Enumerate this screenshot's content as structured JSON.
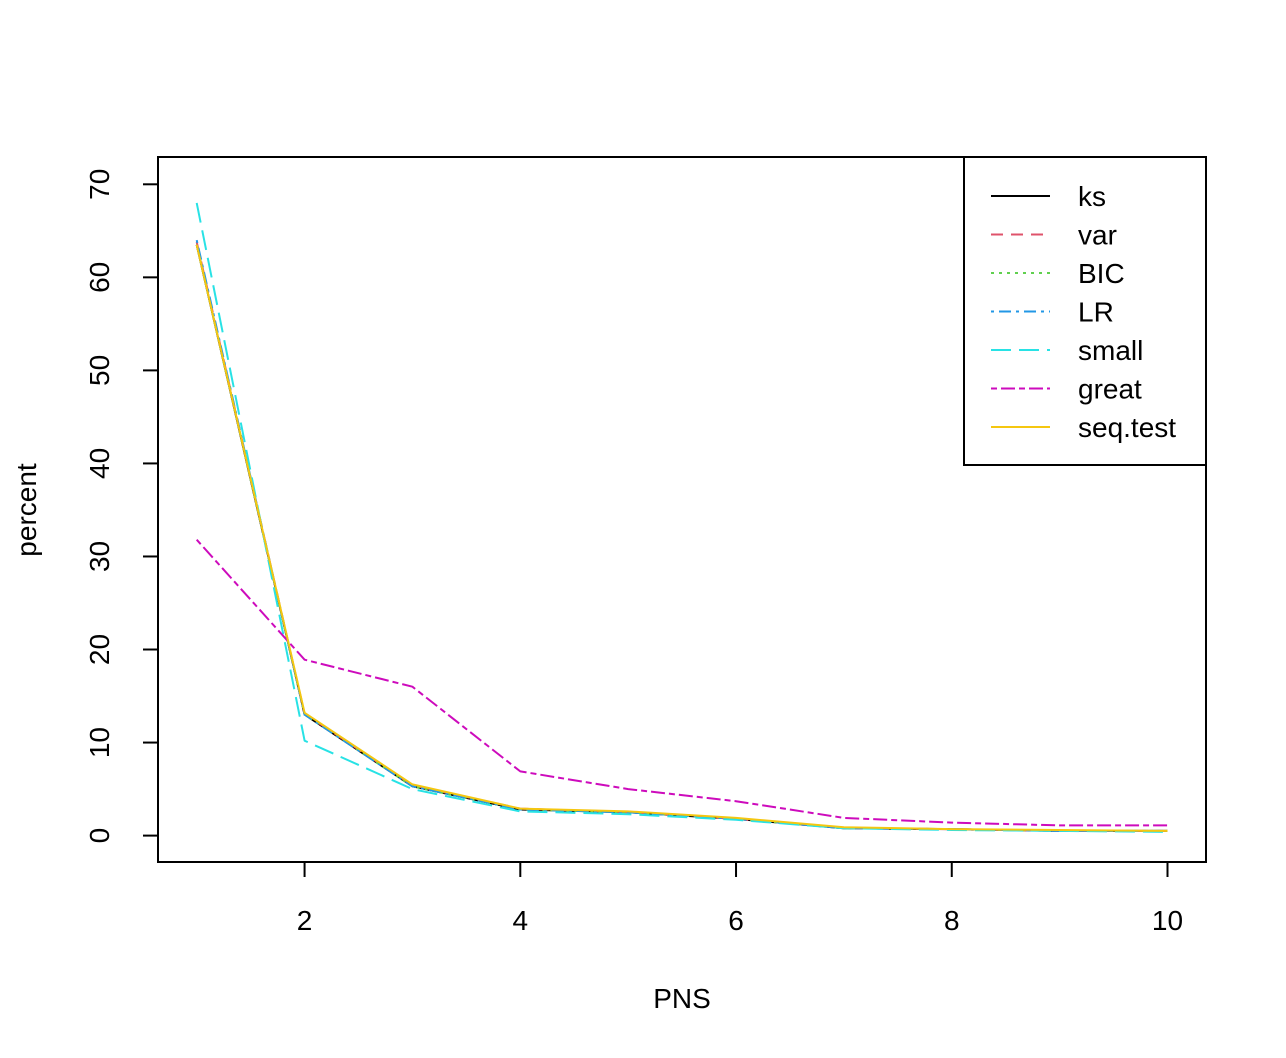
{
  "chart_data": {
    "type": "line",
    "title": "",
    "xlabel": "PNS",
    "ylabel": "percent",
    "xlim": [
      1,
      10
    ],
    "ylim": [
      0,
      70
    ],
    "x_ticks": [
      2,
      4,
      6,
      8,
      10
    ],
    "y_ticks": [
      0,
      10,
      20,
      30,
      40,
      50,
      60,
      70
    ],
    "x": [
      1,
      2,
      3,
      4,
      5,
      6,
      7,
      8,
      9,
      10
    ],
    "grid": false,
    "legend_position": "top-right",
    "series": [
      {
        "name": "ks",
        "color": "#000000",
        "dash": "solid",
        "values": [
          63.5,
          13.0,
          5.3,
          2.8,
          2.5,
          1.8,
          0.8,
          0.7,
          0.5,
          0.5
        ]
      },
      {
        "name": "var",
        "color": "#DF536B",
        "dash": "dashed",
        "values": [
          63.8,
          13.1,
          5.4,
          2.9,
          2.5,
          1.8,
          0.8,
          0.7,
          0.5,
          0.5
        ]
      },
      {
        "name": "BIC",
        "color": "#61D04F",
        "dash": "dotted",
        "values": [
          63.5,
          13.0,
          5.3,
          2.8,
          2.5,
          1.8,
          0.8,
          0.7,
          0.5,
          0.5
        ]
      },
      {
        "name": "LR",
        "color": "#2297E6",
        "dash": "dotdash",
        "values": [
          64.0,
          13.0,
          5.3,
          2.8,
          2.5,
          1.8,
          0.8,
          0.7,
          0.5,
          0.5
        ]
      },
      {
        "name": "small",
        "color": "#28E2E5",
        "dash": "longdash",
        "values": [
          68.0,
          10.2,
          5.0,
          2.6,
          2.3,
          1.7,
          0.8,
          0.6,
          0.5,
          0.4
        ]
      },
      {
        "name": "great",
        "color": "#CD0BBC",
        "dash": "twodash",
        "values": [
          31.8,
          18.9,
          16.0,
          6.9,
          5.0,
          3.7,
          1.9,
          1.4,
          1.1,
          1.1
        ]
      },
      {
        "name": "seq.test",
        "color": "#F5C710",
        "dash": "solid",
        "values": [
          63.5,
          13.2,
          5.5,
          2.9,
          2.6,
          1.9,
          0.9,
          0.7,
          0.6,
          0.5
        ]
      }
    ]
  }
}
